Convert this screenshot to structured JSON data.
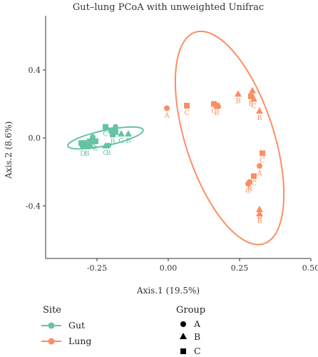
{
  "chart_data": {
    "type": "scatter",
    "title": "Gut–lung PCoA with unweighted Unifrac",
    "xlabel": "Axis.1 (19.5%)",
    "ylabel": "Axis.2 (8.6%)",
    "xlim": [
      -0.43,
      0.5
    ],
    "ylim": [
      -0.71,
      0.72
    ],
    "x_ticks": [
      -0.25,
      0.0,
      0.25,
      0.5
    ],
    "x_tick_labels": [
      "-0.25",
      "0.00",
      "0.25",
      "0.50"
    ],
    "y_ticks": [
      0.4,
      0.0,
      -0.4
    ],
    "y_tick_labels": [
      "0.4",
      "0.0",
      "-0.4"
    ],
    "grid": false,
    "legend_placement": "bottom",
    "colors": {
      "Gut": "#66c2a5",
      "Lung": "#fc8d62"
    },
    "legend": {
      "site_title": "Site",
      "site_items": [
        "Gut",
        "Lung"
      ],
      "group_title": "Group",
      "group_items": [
        "A",
        "B",
        "C"
      ],
      "group_shapes": {
        "A": "circle",
        "B": "triangle",
        "C": "square"
      }
    },
    "series": [
      {
        "name": "Gut",
        "ellipse": {
          "cx": -0.22,
          "cy": 0.0,
          "rx": 0.135,
          "ry": 0.045,
          "angle_deg": 12
        },
        "points": [
          {
            "x": -0.305,
            "y": -0.03,
            "group": "C"
          },
          {
            "x": -0.29,
            "y": -0.03,
            "group": "C"
          },
          {
            "x": -0.275,
            "y": -0.02,
            "group": "C"
          },
          {
            "x": -0.3,
            "y": -0.05,
            "group": "A",
            "label": "D"
          },
          {
            "x": -0.285,
            "y": -0.05,
            "group": "B",
            "label": "B"
          },
          {
            "x": -0.275,
            "y": -0.045,
            "group": "A"
          },
          {
            "x": -0.265,
            "y": 0.005,
            "group": "A"
          },
          {
            "x": -0.26,
            "y": -0.01,
            "group": "B",
            "label": "A"
          },
          {
            "x": -0.255,
            "y": -0.02,
            "group": "C",
            "label": "C"
          },
          {
            "x": -0.22,
            "y": 0.065,
            "group": "C",
            "label": "C"
          },
          {
            "x": -0.2,
            "y": 0.045,
            "group": "C"
          },
          {
            "x": -0.185,
            "y": 0.065,
            "group": "A"
          },
          {
            "x": -0.22,
            "y": -0.045,
            "group": "B",
            "label": "C"
          },
          {
            "x": -0.21,
            "y": -0.045,
            "group": "A",
            "label": "B"
          },
          {
            "x": -0.195,
            "y": 0.02,
            "group": "C",
            "label": "B"
          },
          {
            "x": -0.185,
            "y": 0.035,
            "group": "C"
          },
          {
            "x": -0.165,
            "y": 0.025,
            "group": "B",
            "label": "C"
          },
          {
            "x": -0.14,
            "y": 0.025,
            "group": "B",
            "label": "B"
          }
        ]
      },
      {
        "name": "Lung",
        "ellipse": {
          "cx": 0.215,
          "cy": 0.0,
          "rx": 0.155,
          "ry": 0.655,
          "angle_deg": 18
        },
        "points": [
          {
            "x": -0.005,
            "y": 0.175,
            "group": "A",
            "label": "A"
          },
          {
            "x": 0.065,
            "y": 0.19,
            "group": "C",
            "label": "C"
          },
          {
            "x": 0.16,
            "y": 0.2,
            "group": "C",
            "label": "C"
          },
          {
            "x": 0.17,
            "y": 0.19,
            "group": "C",
            "label": "B"
          },
          {
            "x": 0.175,
            "y": 0.185,
            "group": "A"
          },
          {
            "x": 0.245,
            "y": 0.26,
            "group": "B",
            "label": "B"
          },
          {
            "x": 0.29,
            "y": 0.245,
            "group": "C",
            "label": "B"
          },
          {
            "x": 0.295,
            "y": 0.28,
            "group": "B"
          },
          {
            "x": 0.3,
            "y": 0.23,
            "group": "B",
            "label": "C"
          },
          {
            "x": 0.32,
            "y": 0.16,
            "group": "B",
            "label": "B"
          },
          {
            "x": 0.33,
            "y": -0.09,
            "group": "C",
            "label": "C"
          },
          {
            "x": 0.32,
            "y": -0.165,
            "group": "A",
            "label": "A"
          },
          {
            "x": 0.3,
            "y": -0.225,
            "group": "C",
            "label": "C"
          },
          {
            "x": 0.285,
            "y": -0.26,
            "group": "A",
            "label": "B"
          },
          {
            "x": 0.28,
            "y": -0.27,
            "group": "A",
            "label": "C"
          },
          {
            "x": 0.32,
            "y": -0.42,
            "group": "B",
            "label": "B"
          },
          {
            "x": 0.32,
            "y": -0.445,
            "group": "B",
            "label": "B"
          }
        ]
      }
    ]
  }
}
